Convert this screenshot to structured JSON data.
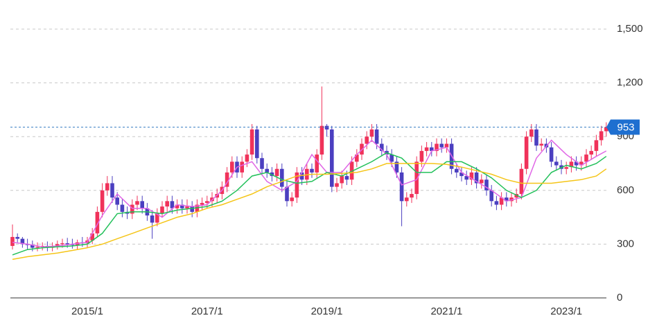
{
  "chart_data": {
    "type": "candlestick",
    "x": [
      "2013/10",
      "2013/11",
      "2013/12",
      "2014/1",
      "2014/2",
      "2014/3",
      "2014/4",
      "2014/5",
      "2014/6",
      "2014/7",
      "2014/8",
      "2014/9",
      "2014/10",
      "2014/11",
      "2014/12",
      "2015/1",
      "2015/2",
      "2015/3",
      "2015/4",
      "2015/5",
      "2015/6",
      "2015/7",
      "2015/8",
      "2015/9",
      "2015/10",
      "2015/11",
      "2015/12",
      "2016/1",
      "2016/2",
      "2016/3",
      "2016/4",
      "2016/5",
      "2016/6",
      "2016/7",
      "2016/8",
      "2016/9",
      "2016/10",
      "2016/11",
      "2016/12",
      "2017/1",
      "2017/2",
      "2017/3",
      "2017/4",
      "2017/5",
      "2017/6",
      "2017/7",
      "2017/8",
      "2017/9",
      "2017/10",
      "2017/11",
      "2017/12",
      "2018/1",
      "2018/2",
      "2018/3",
      "2018/4",
      "2018/5",
      "2018/6",
      "2018/7",
      "2018/8",
      "2018/9",
      "2018/10",
      "2018/11",
      "2018/12",
      "2019/1",
      "2019/2",
      "2019/3",
      "2019/4",
      "2019/5",
      "2019/6",
      "2019/7",
      "2019/8",
      "2019/9",
      "2019/10",
      "2019/11",
      "2019/12",
      "2020/1",
      "2020/2",
      "2020/3",
      "2020/4",
      "2020/5",
      "2020/6",
      "2020/7",
      "2020/8",
      "2020/9",
      "2020/10",
      "2020/11",
      "2020/12",
      "2021/1",
      "2021/2",
      "2021/3",
      "2021/4",
      "2021/5",
      "2021/6",
      "2021/7",
      "2021/8",
      "2021/9",
      "2021/10",
      "2021/11",
      "2021/12",
      "2022/1",
      "2022/2",
      "2022/3",
      "2022/4",
      "2022/5",
      "2022/6",
      "2022/7",
      "2022/8",
      "2022/9",
      "2022/10",
      "2022/11",
      "2022/12",
      "2023/1",
      "2023/2",
      "2023/3",
      "2023/4",
      "2023/5",
      "2023/6",
      "2023/7",
      "2023/8",
      "2023/9"
    ],
    "open": [
      290,
      340,
      330,
      300,
      295,
      280,
      285,
      290,
      280,
      290,
      300,
      305,
      300,
      295,
      310,
      305,
      320,
      360,
      480,
      600,
      640,
      560,
      520,
      480,
      470,
      520,
      540,
      500,
      460,
      420,
      470,
      510,
      540,
      500,
      520,
      500,
      510,
      480,
      520,
      530,
      540,
      560,
      580,
      620,
      700,
      760,
      700,
      760,
      800,
      940,
      780,
      720,
      700,
      680,
      720,
      620,
      540,
      560,
      700,
      660,
      720,
      700,
      800,
      960,
      940,
      620,
      640,
      680,
      660,
      760,
      800,
      860,
      900,
      940,
      860,
      820,
      800,
      760,
      700,
      540,
      560,
      580,
      760,
      820,
      840,
      820,
      860,
      840,
      860,
      720,
      700,
      680,
      660,
      700,
      640,
      660,
      600,
      540,
      520,
      560,
      540,
      560,
      580,
      720,
      900,
      940,
      850,
      860,
      840,
      760,
      740,
      720,
      730,
      760,
      740,
      760,
      800,
      820,
      880,
      930
    ],
    "high": [
      410,
      360,
      340,
      330,
      320,
      310,
      310,
      315,
      310,
      320,
      330,
      335,
      330,
      325,
      340,
      340,
      390,
      510,
      640,
      680,
      680,
      590,
      550,
      510,
      550,
      570,
      570,
      530,
      490,
      500,
      540,
      570,
      570,
      550,
      550,
      550,
      540,
      550,
      560,
      570,
      590,
      610,
      650,
      730,
      790,
      790,
      790,
      830,
      970,
      960,
      810,
      750,
      730,
      750,
      750,
      650,
      590,
      730,
      730,
      750,
      750,
      830,
      1180,
      970,
      960,
      670,
      710,
      710,
      790,
      830,
      890,
      930,
      970,
      970,
      890,
      850,
      830,
      790,
      730,
      590,
      610,
      790,
      850,
      870,
      870,
      890,
      890,
      890,
      890,
      750,
      730,
      710,
      730,
      730,
      690,
      690,
      630,
      570,
      590,
      590,
      590,
      610,
      750,
      930,
      970,
      970,
      890,
      890,
      870,
      790,
      770,
      760,
      790,
      790,
      790,
      830,
      850,
      910,
      960,
      980
    ],
    "low": [
      270,
      310,
      280,
      270,
      260,
      260,
      265,
      260,
      260,
      270,
      280,
      280,
      275,
      270,
      285,
      280,
      300,
      340,
      450,
      570,
      530,
      490,
      450,
      440,
      440,
      490,
      470,
      430,
      330,
      400,
      450,
      480,
      470,
      470,
      470,
      470,
      450,
      450,
      490,
      500,
      510,
      530,
      550,
      590,
      670,
      670,
      670,
      730,
      770,
      750,
      690,
      670,
      650,
      650,
      590,
      510,
      510,
      530,
      630,
      630,
      670,
      670,
      770,
      900,
      590,
      590,
      610,
      630,
      630,
      730,
      770,
      830,
      870,
      830,
      790,
      770,
      730,
      670,
      400,
      510,
      530,
      550,
      730,
      790,
      790,
      790,
      810,
      810,
      690,
      670,
      650,
      630,
      630,
      610,
      610,
      570,
      510,
      490,
      490,
      510,
      510,
      530,
      550,
      690,
      870,
      820,
      820,
      810,
      730,
      710,
      690,
      690,
      700,
      710,
      710,
      730,
      770,
      790,
      850,
      900
    ],
    "close": [
      340,
      330,
      300,
      295,
      280,
      285,
      290,
      280,
      290,
      300,
      305,
      300,
      295,
      310,
      305,
      320,
      360,
      480,
      600,
      640,
      560,
      520,
      480,
      470,
      520,
      540,
      500,
      460,
      420,
      470,
      510,
      540,
      500,
      520,
      500,
      510,
      480,
      520,
      530,
      540,
      560,
      580,
      620,
      700,
      760,
      700,
      760,
      800,
      940,
      780,
      720,
      700,
      680,
      720,
      620,
      540,
      560,
      700,
      660,
      720,
      700,
      800,
      960,
      940,
      620,
      640,
      680,
      660,
      760,
      800,
      860,
      900,
      940,
      860,
      820,
      800,
      760,
      700,
      540,
      560,
      580,
      760,
      820,
      840,
      820,
      860,
      840,
      860,
      720,
      700,
      680,
      660,
      700,
      640,
      660,
      600,
      540,
      520,
      560,
      540,
      560,
      580,
      720,
      900,
      940,
      850,
      860,
      840,
      760,
      740,
      720,
      730,
      760,
      740,
      760,
      800,
      820,
      880,
      930,
      953
    ],
    "up_color": "#f0325a",
    "down_color": "#4b3fc0",
    "ylim": [
      0,
      1500
    ],
    "yticks": [
      0,
      300,
      600,
      900,
      {
        "value": 1200,
        "label": "1,200"
      },
      {
        "value": 1500,
        "label": "1,500"
      }
    ],
    "xticks": [
      "2015/1",
      "2017/1",
      "2019/1",
      "2021/1",
      "2023/1"
    ],
    "grid": true,
    "moving_averages": {
      "x": [
        "2013/10",
        "2014/1",
        "2014/4",
        "2014/7",
        "2014/10",
        "2015/1",
        "2015/4",
        "2015/7",
        "2015/10",
        "2016/1",
        "2016/4",
        "2016/7",
        "2016/10",
        "2017/1",
        "2017/4",
        "2017/7",
        "2017/10",
        "2018/1",
        "2018/4",
        "2018/7",
        "2018/10",
        "2019/1",
        "2019/4",
        "2019/7",
        "2019/10",
        "2020/1",
        "2020/4",
        "2020/7",
        "2020/10",
        "2021/1",
        "2021/4",
        "2021/7",
        "2021/10",
        "2022/1",
        "2022/4",
        "2022/7",
        "2022/10",
        "2023/1",
        "2023/4",
        "2023/7",
        "2023/9"
      ],
      "series": [
        {
          "color": "#e066e6",
          "values": [
            310,
            300,
            285,
            290,
            300,
            310,
            460,
            580,
            500,
            500,
            450,
            520,
            510,
            520,
            600,
            730,
            760,
            650,
            600,
            650,
            800,
            700,
            700,
            800,
            880,
            800,
            630,
            660,
            820,
            840,
            700,
            650,
            600,
            540,
            560,
            780,
            880,
            800,
            740,
            790,
            820
          ]
        },
        {
          "color": "#22c05a",
          "values": [
            240,
            270,
            280,
            285,
            290,
            300,
            360,
            470,
            480,
            480,
            470,
            490,
            500,
            510,
            540,
            600,
            680,
            700,
            660,
            640,
            650,
            700,
            680,
            720,
            760,
            810,
            780,
            700,
            700,
            760,
            760,
            720,
            670,
            600,
            560,
            600,
            700,
            740,
            720,
            750,
            790
          ]
        },
        {
          "color": "#f5c518",
          "values": [
            215,
            230,
            240,
            250,
            265,
            280,
            300,
            330,
            360,
            390,
            420,
            450,
            470,
            500,
            520,
            550,
            580,
            620,
            650,
            680,
            690,
            690,
            695,
            700,
            720,
            750,
            750,
            750,
            750,
            745,
            730,
            710,
            690,
            660,
            640,
            640,
            640,
            650,
            660,
            680,
            720
          ]
        }
      ]
    }
  }
}
